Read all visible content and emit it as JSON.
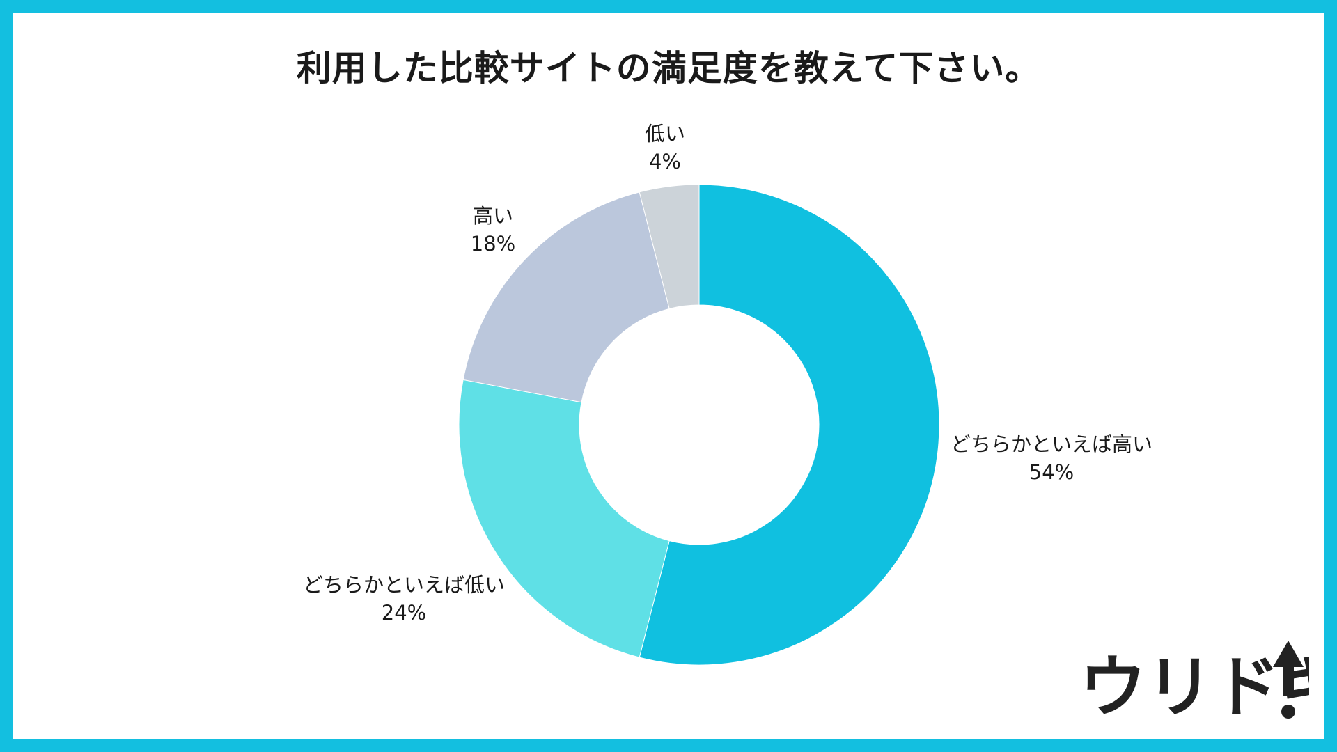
{
  "title": "利用した比較サイトの満足度を教えて下さい。",
  "logo": {
    "text": "ウリドキ",
    "icon": "up-arrow-icon"
  },
  "colors": {
    "border": "#13bfe0",
    "slice_0": "#10c0e0",
    "slice_1": "#5fe0e6",
    "slice_2": "#bbc7dc",
    "slice_3": "#ccd3d9"
  },
  "chart_data": {
    "type": "pie",
    "donut": true,
    "start_angle_deg": 0,
    "direction": "clockwise",
    "slices": [
      {
        "label": "どちらかといえば高い",
        "value": 54,
        "value_label": "54%"
      },
      {
        "label": "どちらかといえば低い",
        "value": 24,
        "value_label": "24%"
      },
      {
        "label": "高い",
        "value": 18,
        "value_label": "18%"
      },
      {
        "label": "低い",
        "value": 4,
        "value_label": "4%"
      }
    ]
  }
}
